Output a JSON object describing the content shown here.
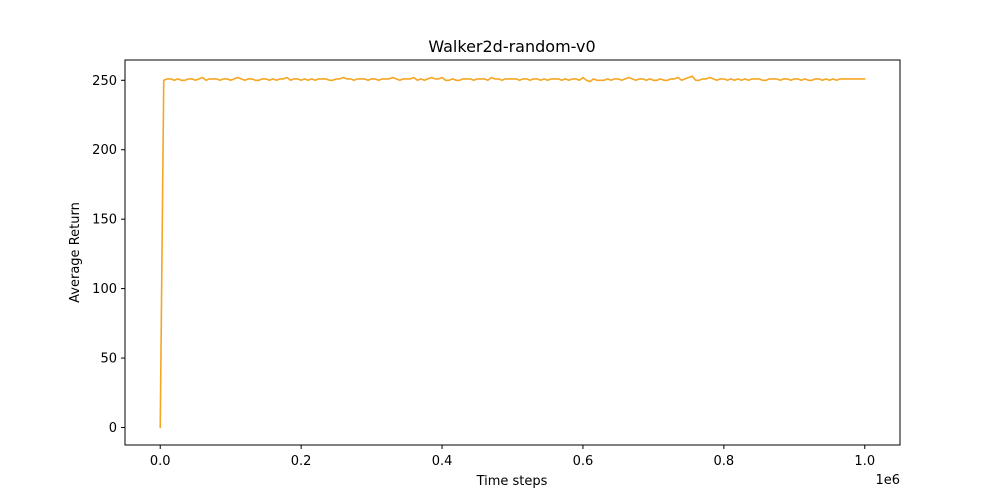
{
  "chart_data": {
    "type": "line",
    "title": "Walker2d-random-v0",
    "xlabel": "Time steps",
    "ylabel": "Average Return",
    "x_offset_label": "1e6",
    "xlim": [
      -0.05,
      1.05
    ],
    "ylim": [
      -12.6,
      264.6
    ],
    "xticks": [
      0.0,
      0.2,
      0.4,
      0.6,
      0.8,
      1.0
    ],
    "xtick_labels": [
      "0.0",
      "0.2",
      "0.4",
      "0.6",
      "0.8",
      "1.0"
    ],
    "yticks": [
      0,
      50,
      100,
      150,
      200,
      250
    ],
    "ytick_labels": [
      "0",
      "50",
      "100",
      "150",
      "200",
      "250"
    ],
    "grid": false,
    "legend": "none",
    "series": [
      {
        "color": "#f5a623",
        "x": [
          0.0,
          0.005,
          0.01,
          0.015,
          0.02,
          0.025,
          0.03,
          0.035,
          0.04,
          0.045,
          0.05,
          0.055,
          0.06,
          0.065,
          0.07,
          0.075,
          0.08,
          0.085,
          0.09,
          0.095,
          0.1,
          0.105,
          0.11,
          0.115,
          0.12,
          0.125,
          0.13,
          0.135,
          0.14,
          0.145,
          0.15,
          0.155,
          0.16,
          0.165,
          0.17,
          0.175,
          0.18,
          0.185,
          0.19,
          0.195,
          0.2,
          0.205,
          0.21,
          0.215,
          0.22,
          0.225,
          0.23,
          0.235,
          0.24,
          0.245,
          0.25,
          0.255,
          0.26,
          0.265,
          0.27,
          0.275,
          0.28,
          0.285,
          0.29,
          0.295,
          0.3,
          0.305,
          0.31,
          0.315,
          0.32,
          0.325,
          0.33,
          0.335,
          0.34,
          0.345,
          0.35,
          0.355,
          0.36,
          0.365,
          0.37,
          0.375,
          0.38,
          0.385,
          0.39,
          0.395,
          0.4,
          0.405,
          0.41,
          0.415,
          0.42,
          0.425,
          0.43,
          0.435,
          0.44,
          0.445,
          0.45,
          0.455,
          0.46,
          0.465,
          0.47,
          0.475,
          0.48,
          0.485,
          0.49,
          0.495,
          0.5,
          0.505,
          0.51,
          0.515,
          0.52,
          0.525,
          0.53,
          0.535,
          0.54,
          0.545,
          0.55,
          0.555,
          0.56,
          0.565,
          0.57,
          0.575,
          0.58,
          0.585,
          0.59,
          0.595,
          0.6,
          0.605,
          0.61,
          0.615,
          0.62,
          0.625,
          0.63,
          0.635,
          0.64,
          0.645,
          0.65,
          0.655,
          0.66,
          0.665,
          0.67,
          0.675,
          0.68,
          0.685,
          0.69,
          0.695,
          0.7,
          0.705,
          0.71,
          0.715,
          0.72,
          0.725,
          0.73,
          0.735,
          0.74,
          0.745,
          0.75,
          0.755,
          0.76,
          0.765,
          0.77,
          0.775,
          0.78,
          0.785,
          0.79,
          0.795,
          0.8,
          0.805,
          0.81,
          0.815,
          0.82,
          0.825,
          0.83,
          0.835,
          0.84,
          0.845,
          0.85,
          0.855,
          0.86,
          0.865,
          0.87,
          0.875,
          0.88,
          0.885,
          0.89,
          0.895,
          0.9,
          0.905,
          0.91,
          0.915,
          0.92,
          0.925,
          0.93,
          0.935,
          0.94,
          0.945,
          0.95,
          0.955,
          0.96,
          0.965,
          0.97,
          0.975,
          0.98,
          0.985,
          0.99,
          0.995,
          1.0
        ],
        "y": [
          0,
          250,
          251,
          251,
          250,
          251,
          250,
          250,
          251,
          251,
          250,
          251,
          252,
          250,
          251,
          251,
          251,
          250,
          251,
          251,
          250,
          251,
          252,
          251,
          250,
          251,
          251,
          250,
          250,
          251,
          251,
          250,
          251,
          250,
          251,
          251,
          252,
          250,
          251,
          251,
          250,
          251,
          250,
          251,
          250,
          251,
          251,
          251,
          250,
          250,
          251,
          251,
          252,
          251,
          251,
          250,
          251,
          251,
          251,
          250,
          251,
          251,
          250,
          251,
          251,
          251,
          252,
          251,
          250,
          251,
          251,
          251,
          252,
          250,
          251,
          250,
          251,
          252,
          251,
          251,
          252,
          250,
          250,
          251,
          250,
          250,
          251,
          251,
          251,
          250,
          251,
          251,
          251,
          250,
          252,
          251,
          251,
          250,
          251,
          251,
          251,
          251,
          250,
          251,
          251,
          250,
          251,
          251,
          250,
          251,
          250,
          251,
          251,
          251,
          250,
          251,
          250,
          251,
          251,
          250,
          252,
          250,
          249,
          251,
          250,
          250,
          250,
          251,
          250,
          251,
          251,
          250,
          251,
          252,
          251,
          250,
          251,
          251,
          250,
          251,
          250,
          250,
          251,
          250,
          250,
          251,
          251,
          252,
          250,
          251,
          252,
          253,
          250,
          250,
          251,
          251,
          252,
          251,
          250,
          251,
          251,
          250,
          251,
          250,
          251,
          250,
          251,
          250,
          251,
          251,
          251,
          250,
          250,
          251,
          251,
          251,
          250,
          251,
          251,
          250,
          251,
          251,
          250,
          251,
          250,
          250,
          251,
          251,
          250,
          251,
          250,
          251,
          250,
          251,
          251,
          251,
          251,
          251,
          251,
          251,
          251
        ]
      }
    ]
  }
}
